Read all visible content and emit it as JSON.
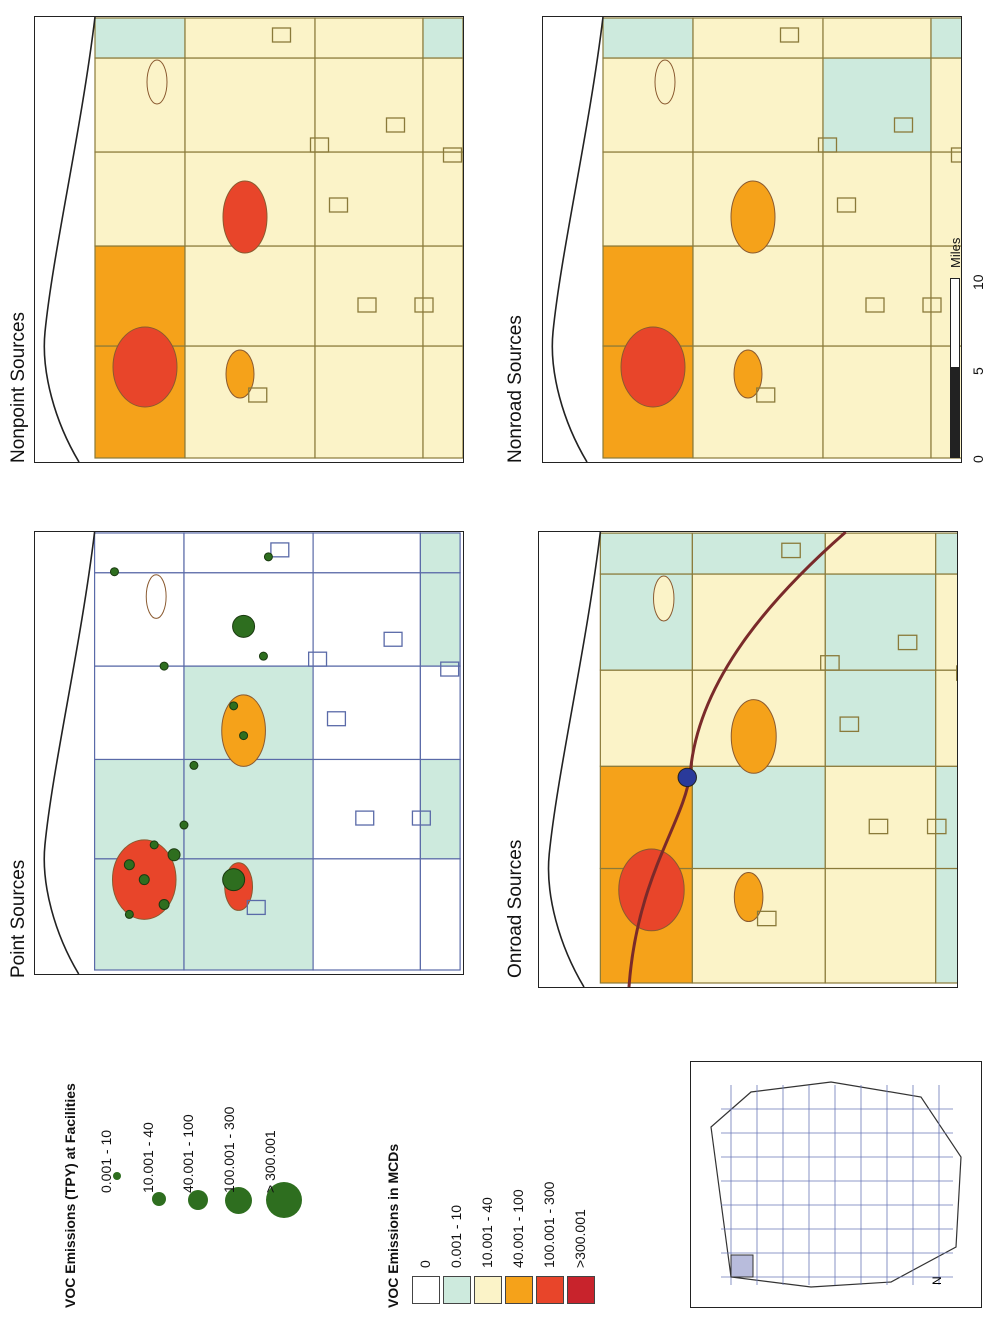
{
  "maps": [
    {
      "key": "point",
      "title": "Point Sources"
    },
    {
      "key": "nonpoint",
      "title": "Nonpoint Sources"
    },
    {
      "key": "onroad",
      "title": "Onroad Sources"
    },
    {
      "key": "nonroad",
      "title": "Nonroad Sources"
    }
  ],
  "facility_legend": {
    "title": "VOC Emissions (TPY) at Facilities",
    "items": [
      "0.001 - 10",
      "10.001 - 40",
      "40.001 - 100",
      "100.001 - 300",
      "> 300.001"
    ]
  },
  "mcd_legend": {
    "title": "VOC Emissions in MCDs",
    "items": [
      {
        "label": "0",
        "color": "#ffffff"
      },
      {
        "label": "0.001 -  10",
        "color": "#cdeadd"
      },
      {
        "label": "10.001 - 40",
        "color": "#fbf3c8"
      },
      {
        "label": "40.001 - 100",
        "color": "#f5a21a"
      },
      {
        "label": "100.001 - 300",
        "color": "#e8452a"
      },
      {
        "label": ">300.001",
        "color": "#c8232c"
      }
    ]
  },
  "scale_bar": {
    "ticks": [
      "0",
      "5",
      "10"
    ],
    "unit": "Miles"
  },
  "inset": {
    "north": "N"
  },
  "colors": {
    "dot": "#2e6e1f",
    "border": "#8a7a3a",
    "road": "#7a2a2a"
  }
}
